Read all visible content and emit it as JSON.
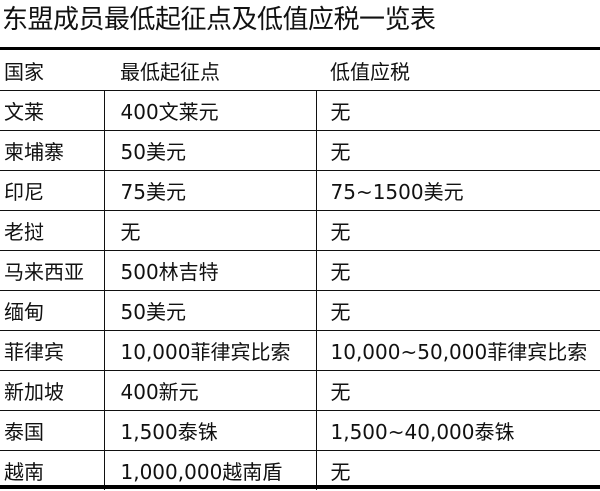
{
  "title": "东盟成员最低起征点及低值应税一览表",
  "headers": [
    "国家",
    "最低起征点",
    "低值应税"
  ],
  "rows": [
    [
      "文莱",
      "400文莱元",
      "无"
    ],
    [
      "柬埔寨",
      "50美元",
      "无"
    ],
    [
      "印尼",
      "75美元",
      "75~1500美元"
    ],
    [
      "老挝",
      "无",
      "无"
    ],
    [
      "马来西亚",
      "500林吉特",
      "无"
    ],
    [
      "缅甸",
      "50美元",
      "无"
    ],
    [
      "菲律宾",
      "10,000菲律宾比索",
      "10,000~50,000菲律宾比索"
    ],
    [
      "新加坡",
      "400新元",
      "无"
    ],
    [
      "泰国",
      "1,500泰铢",
      "1,500~40,000泰铢"
    ],
    [
      "越南",
      "1,000,000越南盾",
      "无"
    ]
  ]
}
